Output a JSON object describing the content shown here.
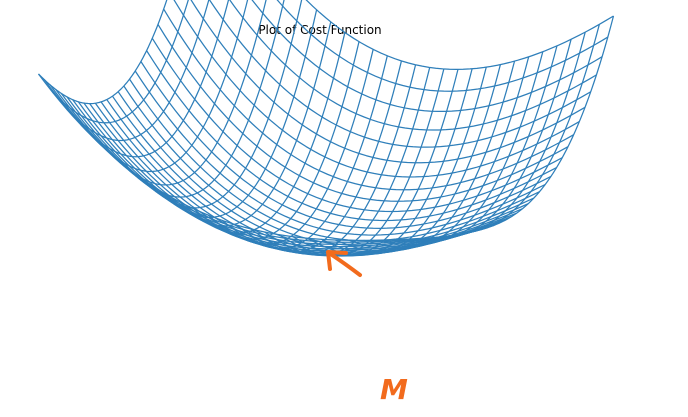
{
  "chart_data": {
    "type": "wireframe-surface",
    "title": "Plot of Cost Function",
    "xlabel": "",
    "ylabel": "",
    "zlabel": "",
    "function": "z = x^2 + y^2",
    "x_range": [
      -1,
      1
    ],
    "y_range": [
      -1,
      1
    ],
    "z_range": [
      0,
      2
    ],
    "grid_lines_per_axis": 30,
    "axes_visible": false,
    "minimum": {
      "x": 0,
      "y": 0,
      "z": 0
    },
    "line_color": "#2f7fba"
  },
  "annotation": {
    "label": "M",
    "color": "#f26b1d",
    "points_to": "minimum"
  }
}
